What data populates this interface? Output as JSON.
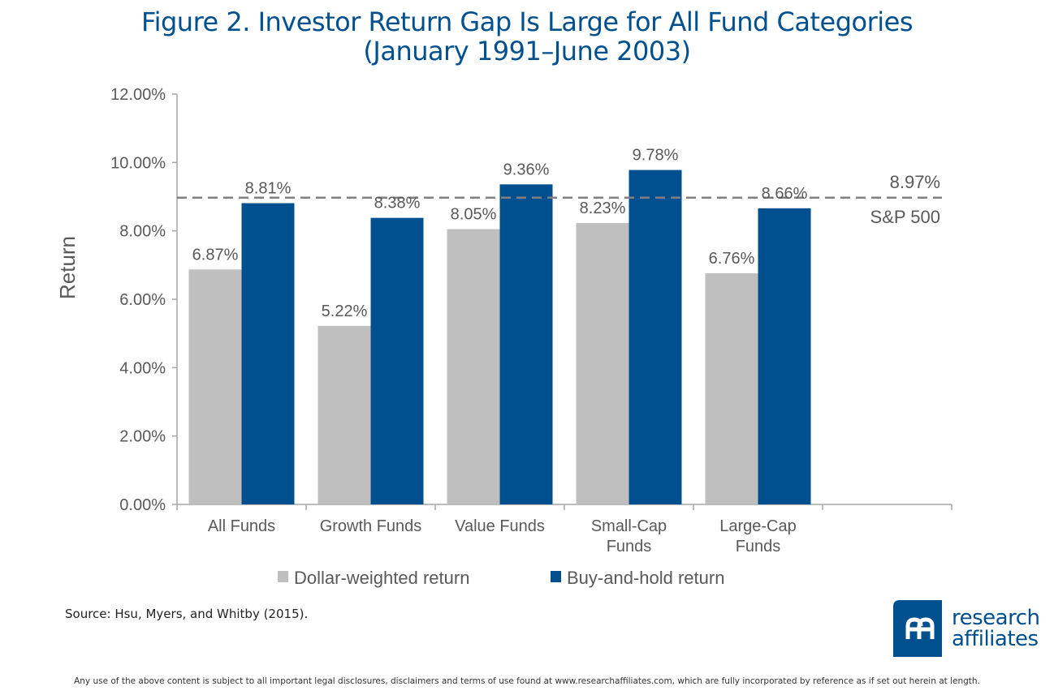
{
  "header": {
    "title_line1": "Figure 2. Investor Return Gap Is Large for All Fund Categories",
    "title_line2": "(January 1991–June 2003)"
  },
  "chart_data": {
    "type": "bar",
    "title": "Figure 2. Investor Return Gap Is Large for All Fund Categories (January 1991–June 2003)",
    "xlabel": "",
    "ylabel": "Return",
    "ylim": [
      0,
      12
    ],
    "yticks": [
      0,
      2,
      4,
      6,
      8,
      10,
      12
    ],
    "ytick_labels": [
      "0.00%",
      "2.00%",
      "4.00%",
      "6.00%",
      "8.00%",
      "10.00%",
      "12.00%"
    ],
    "grid": false,
    "categories": [
      "All Funds",
      "Growth Funds",
      "Value Funds",
      "Small-Cap Funds",
      "Large-Cap Funds"
    ],
    "category_label_lines": [
      [
        "All Funds"
      ],
      [
        "Growth Funds"
      ],
      [
        "Value Funds"
      ],
      [
        "Small-Cap",
        "Funds"
      ],
      [
        "Large-Cap",
        "Funds"
      ]
    ],
    "empty_trailing_category": true,
    "series": [
      {
        "name": "Dollar-weighted return",
        "color": "#bfbfbf",
        "values": [
          6.87,
          5.22,
          8.05,
          8.23,
          6.76
        ],
        "labels": [
          "6.87%",
          "5.22%",
          "8.05%",
          "8.23%",
          "6.76%"
        ]
      },
      {
        "name": "Buy-and-hold return",
        "color": "#00508f",
        "values": [
          8.81,
          8.38,
          9.36,
          9.78,
          8.66
        ],
        "labels": [
          "8.81%",
          "8.38%",
          "9.36%",
          "9.78%",
          "8.66%"
        ]
      }
    ],
    "reference_line": {
      "name": "S&P 500",
      "value": 8.97,
      "value_label": "8.97%",
      "style": "dashed",
      "color": "#808080"
    },
    "legend": {
      "position": "bottom",
      "entries": [
        "Dollar-weighted return",
        "Buy-and-hold return"
      ]
    }
  },
  "footer": {
    "source": "Source: Hsu, Myers, and Whitby (2015).",
    "disclaimer": "Any use of the above content is subject to all important legal disclosures, disclaimers and terms of use found at www.researchaffiliates.com, which are fully incorporated by reference as if set out herein at length.",
    "logo_line1": "research",
    "logo_line2": "affiliates",
    "brand_color": "#00508f"
  }
}
